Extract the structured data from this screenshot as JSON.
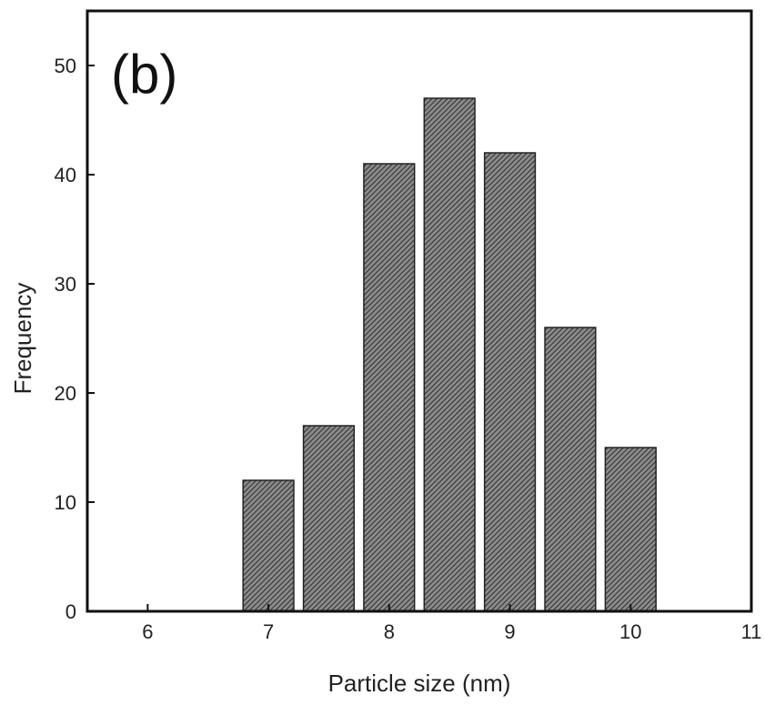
{
  "chart_data": {
    "type": "bar",
    "panel_label": "(b)",
    "xlabel": "Particle size (nm)",
    "ylabel": "Frequency",
    "xlim": [
      5.5,
      11
    ],
    "ylim": [
      0,
      55
    ],
    "x_ticks": [
      "6",
      "7",
      "8",
      "9",
      "10",
      "11"
    ],
    "y_ticks": [
      "0",
      "10",
      "20",
      "30",
      "40",
      "50"
    ],
    "bar_width": 0.42,
    "x": [
      7.0,
      7.5,
      8.0,
      8.5,
      9.0,
      9.5,
      10.0
    ],
    "values": [
      12,
      17,
      41,
      47,
      42,
      26,
      15
    ],
    "bar_color": "#5a5a5a",
    "grid": false
  }
}
